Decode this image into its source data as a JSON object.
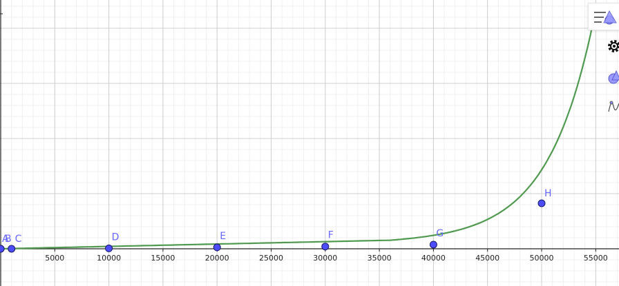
{
  "graph": {
    "background_color": "#ffffff",
    "curve_color": "#4f9a4f",
    "point_fill": "#4d4dff",
    "label_color": "#6666ff",
    "x_range": [
      0,
      57000
    ],
    "y_range": [
      0,
      1
    ],
    "x_ticks": [
      "5000",
      "10000",
      "15000",
      "20000",
      "25000",
      "30000",
      "35000",
      "40000",
      "45000",
      "50000",
      "55000"
    ],
    "points": [
      {
        "label": "A",
        "x": 0,
        "y": 0.0
      },
      {
        "label": "B",
        "x": 0,
        "y": 0.0
      },
      {
        "label": "C",
        "x": 1000,
        "y": 0.0
      },
      {
        "label": "D",
        "x": 10000,
        "y": 0.002
      },
      {
        "label": "E",
        "x": 20000,
        "y": 0.007
      },
      {
        "label": "F",
        "x": 30000,
        "y": 0.011
      },
      {
        "label": "G",
        "x": 40000,
        "y": 0.02
      },
      {
        "label": "H",
        "x": 50000,
        "y": 0.22
      }
    ]
  },
  "toolbar": {
    "icons": [
      "style-bar-icon",
      "settings-gear-icon",
      "graphics-view-icon",
      "function-graph-icon"
    ]
  }
}
